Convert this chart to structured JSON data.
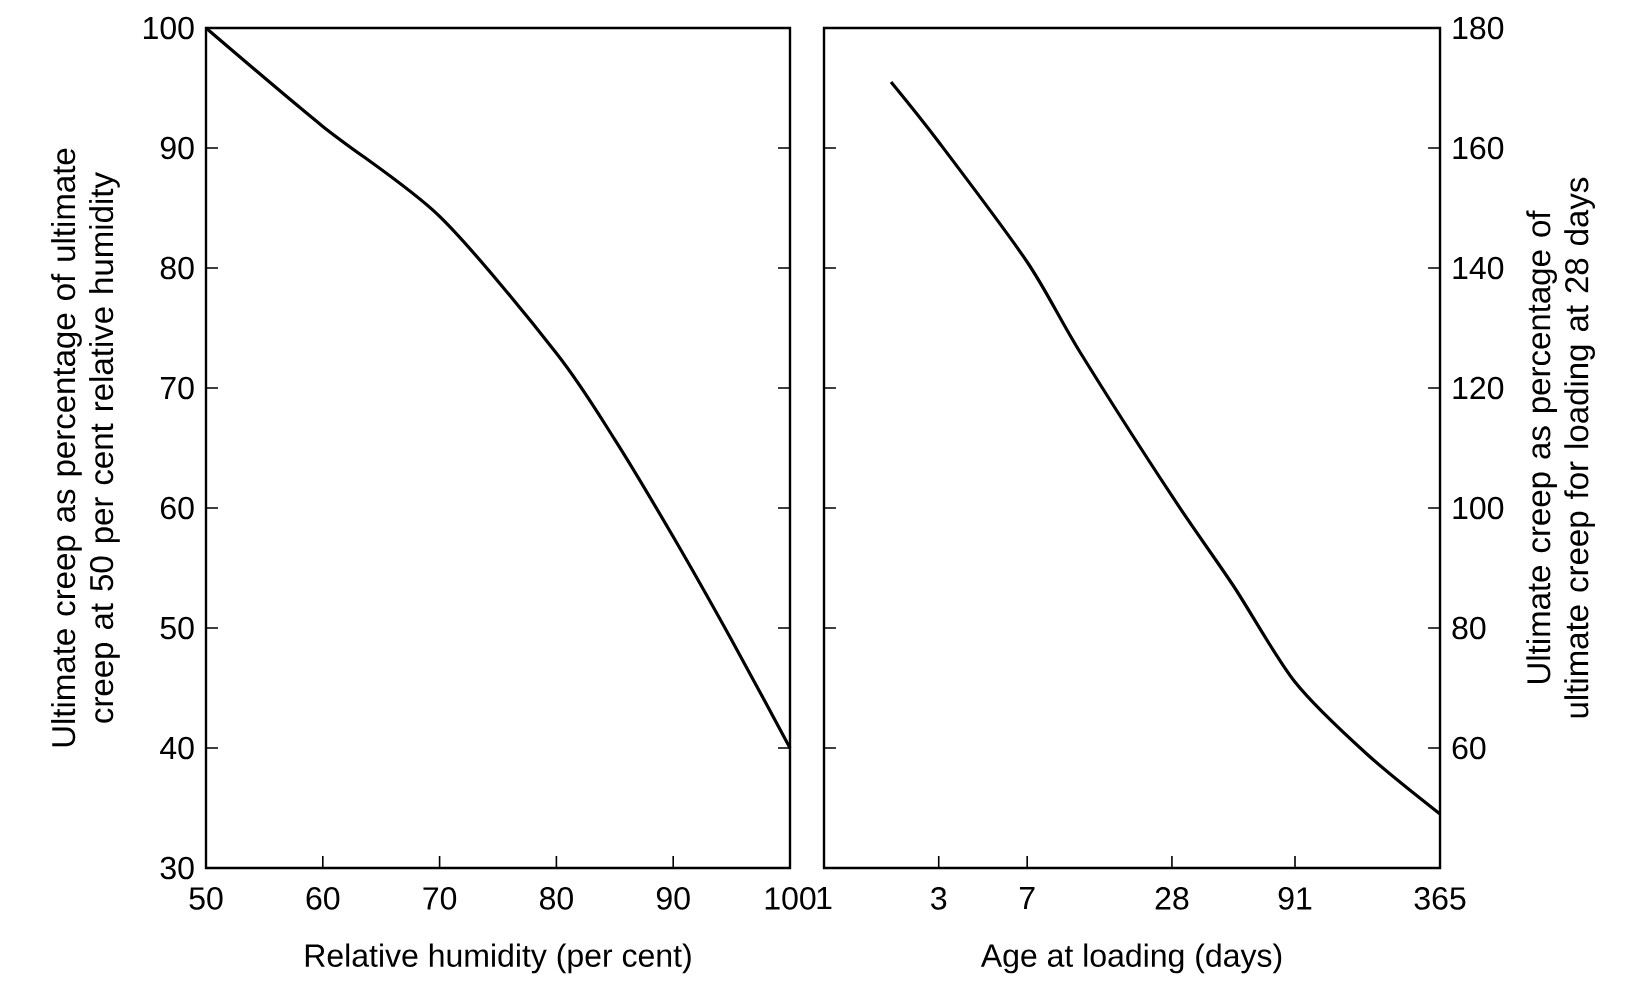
{
  "chart_data": [
    {
      "type": "line",
      "xlabel": "Relative humidity (per cent)",
      "ylabel": "Ultimate creep as percentage of ultimate creep at 50 per cent relative humidity",
      "xlim": [
        50,
        100
      ],
      "ylim": [
        30,
        100
      ],
      "xticks": [
        50,
        60,
        70,
        80,
        90,
        100
      ],
      "yticks": [
        30,
        40,
        50,
        60,
        70,
        80,
        90,
        100
      ],
      "grid": false,
      "series": [
        {
          "color": "#000000",
          "x": [
            50,
            60,
            70,
            80,
            85,
            90,
            95,
            100
          ],
          "values": [
            100,
            91.8,
            84.3,
            72.9,
            65.7,
            57.6,
            49,
            40
          ]
        }
      ]
    },
    {
      "type": "line",
      "log": "x",
      "xlabel": "Age at loading (days)",
      "y2label": "Ultimate creep as percentage of ultimate creep for loading at 28 days",
      "xlim": [
        1,
        365
      ],
      "y2lim": [
        40,
        180
      ],
      "xticks": [
        1,
        3,
        7,
        28,
        91,
        365
      ],
      "y2ticks": [
        60,
        80,
        100,
        120,
        140,
        160,
        180
      ],
      "grid": false,
      "series": [
        {
          "color": "#000000",
          "axis": "y2",
          "x": [
            1.9,
            3,
            7,
            11.6,
            28,
            50.5,
            91,
            181,
            365
          ],
          "values": [
            171,
            161,
            141,
            126,
            102,
            87,
            71,
            59,
            49
          ]
        }
      ]
    }
  ]
}
